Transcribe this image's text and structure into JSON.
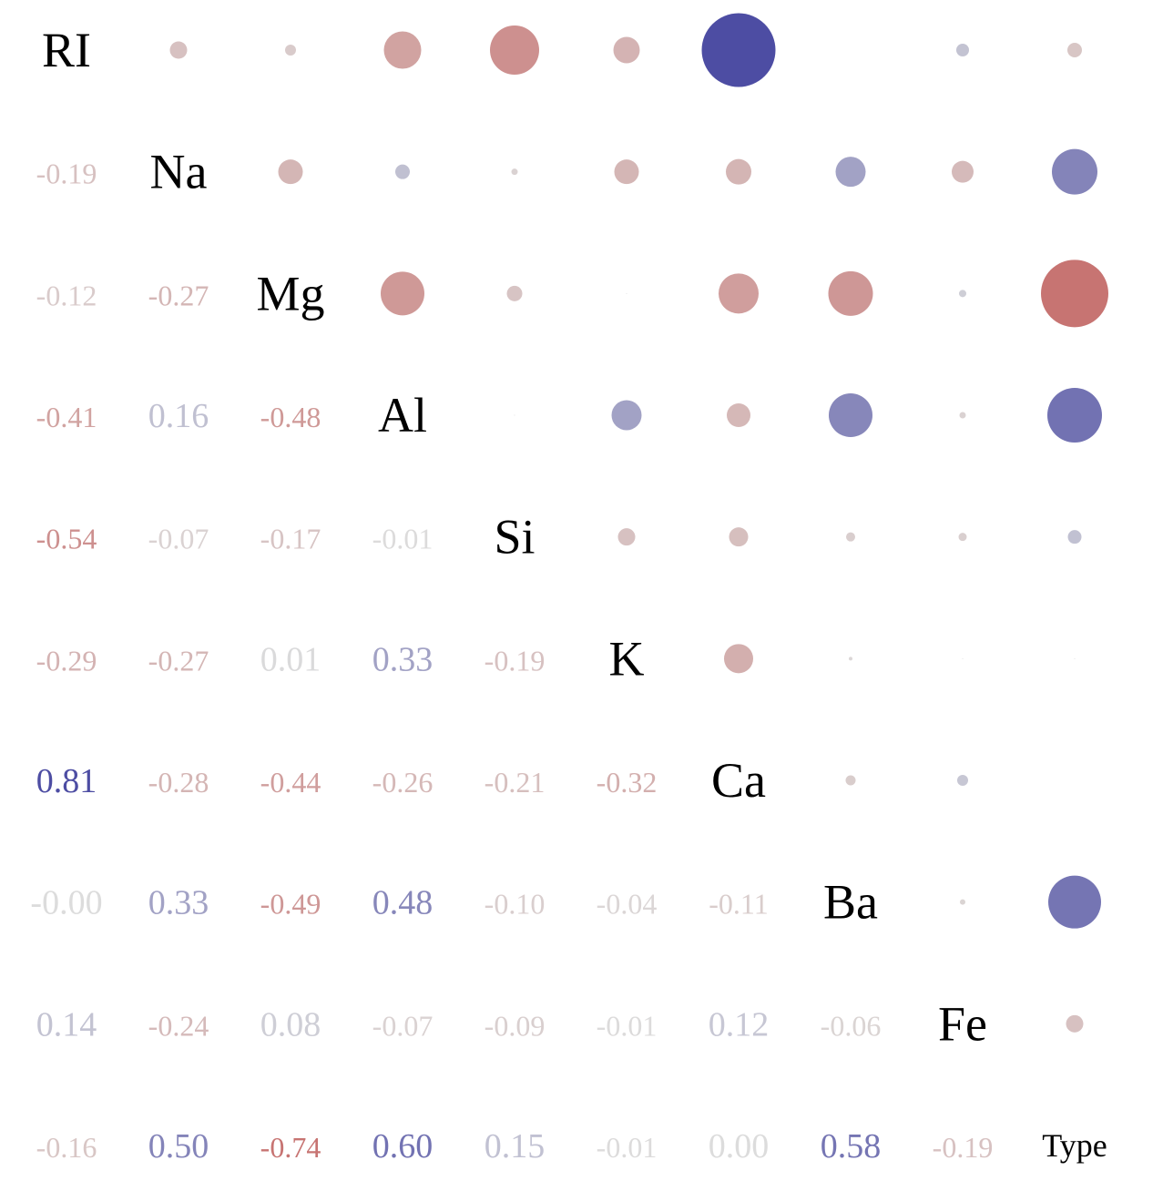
{
  "chart_data": {
    "type": "heatmap",
    "variables": [
      "RI",
      "Na",
      "Mg",
      "Al",
      "Si",
      "K",
      "Ca",
      "Ba",
      "Fe",
      "Type"
    ],
    "matrix": [
      [
        1.0,
        -0.19,
        -0.12,
        -0.41,
        -0.54,
        -0.29,
        0.81,
        -0.0,
        0.14,
        -0.16
      ],
      [
        -0.19,
        1.0,
        -0.27,
        0.16,
        -0.07,
        -0.27,
        -0.28,
        0.33,
        -0.24,
        0.5
      ],
      [
        -0.12,
        -0.27,
        1.0,
        -0.48,
        -0.17,
        0.01,
        -0.44,
        -0.49,
        0.08,
        -0.74
      ],
      [
        -0.41,
        0.16,
        -0.48,
        1.0,
        -0.01,
        0.33,
        -0.26,
        0.48,
        -0.07,
        0.6
      ],
      [
        -0.54,
        -0.07,
        -0.17,
        -0.01,
        1.0,
        -0.19,
        -0.21,
        -0.1,
        -0.09,
        0.15
      ],
      [
        -0.29,
        -0.27,
        0.01,
        0.33,
        -0.19,
        1.0,
        -0.32,
        -0.04,
        -0.01,
        -0.01
      ],
      [
        0.81,
        -0.28,
        -0.44,
        -0.26,
        -0.21,
        -0.32,
        1.0,
        -0.11,
        0.12,
        0.0
      ],
      [
        -0.0,
        0.33,
        -0.49,
        0.48,
        -0.1,
        -0.04,
        -0.11,
        1.0,
        -0.06,
        0.58
      ],
      [
        0.14,
        -0.24,
        0.08,
        -0.07,
        -0.09,
        -0.01,
        0.12,
        -0.06,
        1.0,
        -0.19
      ],
      [
        -0.16,
        0.5,
        -0.74,
        0.6,
        0.15,
        -0.01,
        0.0,
        0.58,
        -0.19,
        1.0
      ]
    ],
    "lower_triangle": "numbers",
    "upper_triangle": "circles",
    "diagonal": "variable names",
    "value_range": [
      -1,
      1
    ],
    "colors": {
      "positive": "#2b2b96",
      "negative": "#c0504d",
      "zero": "#dcdcdc"
    },
    "grid": false,
    "legend": "none"
  }
}
